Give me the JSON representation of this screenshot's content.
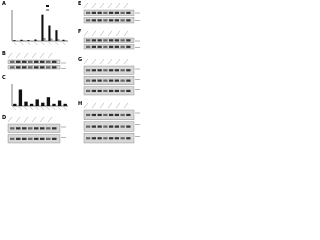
{
  "panels": [
    {
      "label": "A",
      "chart": {
        "type": "bar",
        "ylim": [
          0,
          10
        ],
        "series": [
          {
            "color": "#111111",
            "values": [
              0.3,
              0.4,
              0.3,
              0.5,
              8.5,
              5.0,
              3.5,
              0.4
            ]
          },
          {
            "color": "#999999",
            "values": [
              0.2,
              0.3,
              0.2,
              0.3,
              1.0,
              0.8,
              0.6,
              0.3
            ]
          }
        ]
      }
    },
    {
      "label": "B"
    },
    {
      "label": "C",
      "chart": {
        "type": "bar",
        "ylim": [
          0,
          10
        ],
        "series": [
          {
            "color": "#111111",
            "values": [
              1.0,
              7.5,
              2.0,
              1.0,
              3.0,
              1.5,
              4.0,
              1.0,
              2.5,
              1.0
            ]
          }
        ]
      }
    },
    {
      "label": "D"
    },
    {
      "label": "E"
    },
    {
      "label": "F"
    },
    {
      "label": "G"
    },
    {
      "label": "H"
    }
  ]
}
